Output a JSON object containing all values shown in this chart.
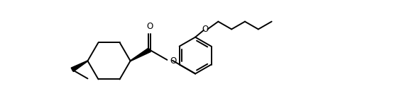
{
  "bg_color": "#ffffff",
  "line_color": "#000000",
  "lw": 1.4,
  "fig_width": 5.62,
  "fig_height": 1.56,
  "dpi": 100,
  "xlim": [
    0.0,
    10.5
  ],
  "ylim": [
    0.5,
    4.2
  ]
}
